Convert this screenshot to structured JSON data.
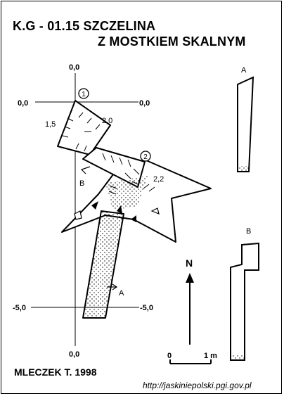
{
  "title": {
    "line1": "K.G - 01.15 SZCZELINA",
    "line2": "Z MOSTKIEM SKALNYM"
  },
  "grid_labels": {
    "top_axis": "0,0",
    "left_axis": "0,0",
    "right_axis": "0,0",
    "bottom_axis": "0,0",
    "left_minus5": "-5,0",
    "right_minus5": "-5,0"
  },
  "stations": [
    {
      "number": "1"
    },
    {
      "number": "2"
    }
  ],
  "depth_labels": {
    "d1": "1,5",
    "d2": "2,0",
    "d3": "2,2"
  },
  "section_labels": {
    "a_plan": "A",
    "b_plan": "B",
    "a_profile": "A",
    "b_profile": "B"
  },
  "north": {
    "label": "N"
  },
  "scale": {
    "zero": "0",
    "one": "1 m"
  },
  "author": "MLECZEK T. 1998",
  "source": "http://jaskiniepolski.pgi.gov.pl"
}
